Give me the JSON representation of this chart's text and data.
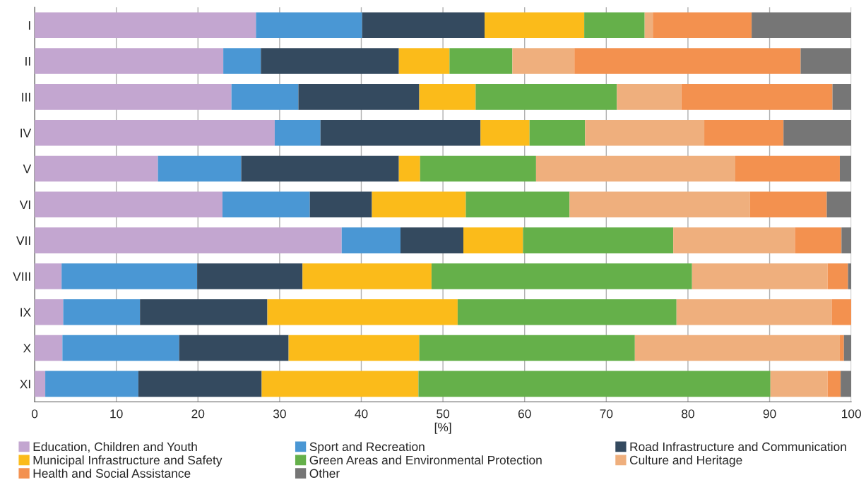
{
  "chart_data": {
    "type": "bar",
    "orientation": "horizontal",
    "stacked": true,
    "xlabel": "[%]",
    "categories": [
      "I",
      "II",
      "III",
      "IV",
      "V",
      "VI",
      "VII",
      "VIII",
      "IX",
      "X",
      "XI"
    ],
    "xlim": [
      0,
      100
    ],
    "xticks": [
      0,
      10,
      20,
      30,
      40,
      50,
      60,
      70,
      80,
      90,
      100
    ],
    "grid": "x",
    "legend": "bottom",
    "series": [
      {
        "name": "Education, Children and Youth",
        "color": "#c3a6d0",
        "values": [
          27.1,
          23.1,
          24.1,
          29.4,
          15.1,
          23.0,
          37.6,
          3.3,
          3.5,
          3.4,
          1.3
        ]
      },
      {
        "name": "Sport and Recreation",
        "color": "#4a97d4",
        "values": [
          13.0,
          4.6,
          8.2,
          5.6,
          10.2,
          10.7,
          7.2,
          16.6,
          9.4,
          14.3,
          11.4
        ]
      },
      {
        "name": "Road Infrastructure and Communication",
        "color": "#344a5f",
        "values": [
          15.0,
          16.9,
          14.8,
          19.6,
          19.3,
          7.6,
          7.7,
          12.9,
          15.6,
          13.4,
          15.1
        ]
      },
      {
        "name": "Municipal Infrastructure and Safety",
        "color": "#fbbb1a",
        "values": [
          12.2,
          6.2,
          6.9,
          6.0,
          2.6,
          11.5,
          7.3,
          15.8,
          23.3,
          16.0,
          19.2
        ]
      },
      {
        "name": "Green Areas and Environmental Protection",
        "color": "#65b04a",
        "values": [
          7.4,
          7.7,
          17.3,
          6.8,
          14.2,
          12.7,
          18.4,
          31.9,
          26.8,
          26.4,
          43.1
        ]
      },
      {
        "name": "Culture and Heritage",
        "color": "#efaf7d",
        "values": [
          1.0,
          7.6,
          7.9,
          14.6,
          24.4,
          22.1,
          14.9,
          16.6,
          19.0,
          25.1,
          7.0
        ]
      },
      {
        "name": "Health and Social Assistance",
        "color": "#f3914f",
        "values": [
          12.1,
          27.7,
          18.5,
          9.7,
          12.8,
          9.4,
          5.7,
          2.5,
          2.4,
          0.5,
          1.6
        ]
      },
      {
        "name": "Other",
        "color": "#767676",
        "values": [
          12.2,
          6.2,
          2.3,
          8.3,
          1.4,
          3.0,
          1.2,
          0.4,
          0.0,
          0.9,
          1.3
        ]
      }
    ]
  }
}
